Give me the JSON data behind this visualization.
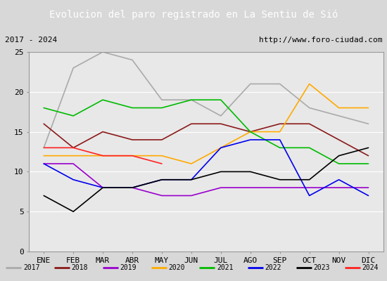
{
  "title": "Evolucion del paro registrado en La Sentiu de Sió",
  "subtitle_left": "2017 - 2024",
  "subtitle_right": "http://www.foro-ciudad.com",
  "months": [
    "ENE",
    "FEB",
    "MAR",
    "ABR",
    "MAY",
    "JUN",
    "JUL",
    "AGO",
    "SEP",
    "OCT",
    "NOV",
    "DIC"
  ],
  "ylim": [
    0,
    25
  ],
  "yticks": [
    0,
    5,
    10,
    15,
    20,
    25
  ],
  "series": {
    "2017": {
      "color": "#aaaaaa",
      "linewidth": 1.2,
      "values": [
        13,
        23,
        25,
        24,
        19,
        19,
        17,
        21,
        21,
        18,
        17,
        16
      ]
    },
    "2018": {
      "color": "#8b1a1a",
      "linewidth": 1.2,
      "values": [
        16,
        13,
        15,
        14,
        14,
        16,
        16,
        15,
        16,
        16,
        14,
        12
      ]
    },
    "2019": {
      "color": "#9900cc",
      "linewidth": 1.2,
      "values": [
        11,
        11,
        8,
        8,
        7,
        7,
        8,
        8,
        8,
        8,
        8,
        8
      ]
    },
    "2020": {
      "color": "#ffaa00",
      "linewidth": 1.2,
      "values": [
        12,
        12,
        12,
        12,
        12,
        11,
        13,
        15,
        15,
        21,
        18,
        18
      ]
    },
    "2021": {
      "color": "#00bb00",
      "linewidth": 1.2,
      "values": [
        18,
        17,
        19,
        18,
        18,
        19,
        19,
        15,
        13,
        13,
        11,
        11
      ]
    },
    "2022": {
      "color": "#0000ee",
      "linewidth": 1.2,
      "values": [
        11,
        9,
        8,
        8,
        9,
        9,
        13,
        14,
        14,
        7,
        9,
        7
      ]
    },
    "2023": {
      "color": "#000000",
      "linewidth": 1.2,
      "values": [
        7,
        5,
        8,
        8,
        9,
        9,
        10,
        10,
        9,
        9,
        12,
        13
      ]
    },
    "2024": {
      "color": "#ff2222",
      "linewidth": 1.2,
      "values": [
        13,
        13,
        12,
        12,
        11,
        null,
        null,
        null,
        null,
        null,
        null,
        null
      ]
    }
  },
  "title_bgcolor": "#5b8dd9",
  "title_color": "white",
  "title_fontsize": 10,
  "subtitle_fontsize": 8,
  "tick_fontsize": 8,
  "background_color": "#d8d8d8",
  "plot_bgcolor": "#e8e8e8",
  "border_color": "#5b8dd9"
}
